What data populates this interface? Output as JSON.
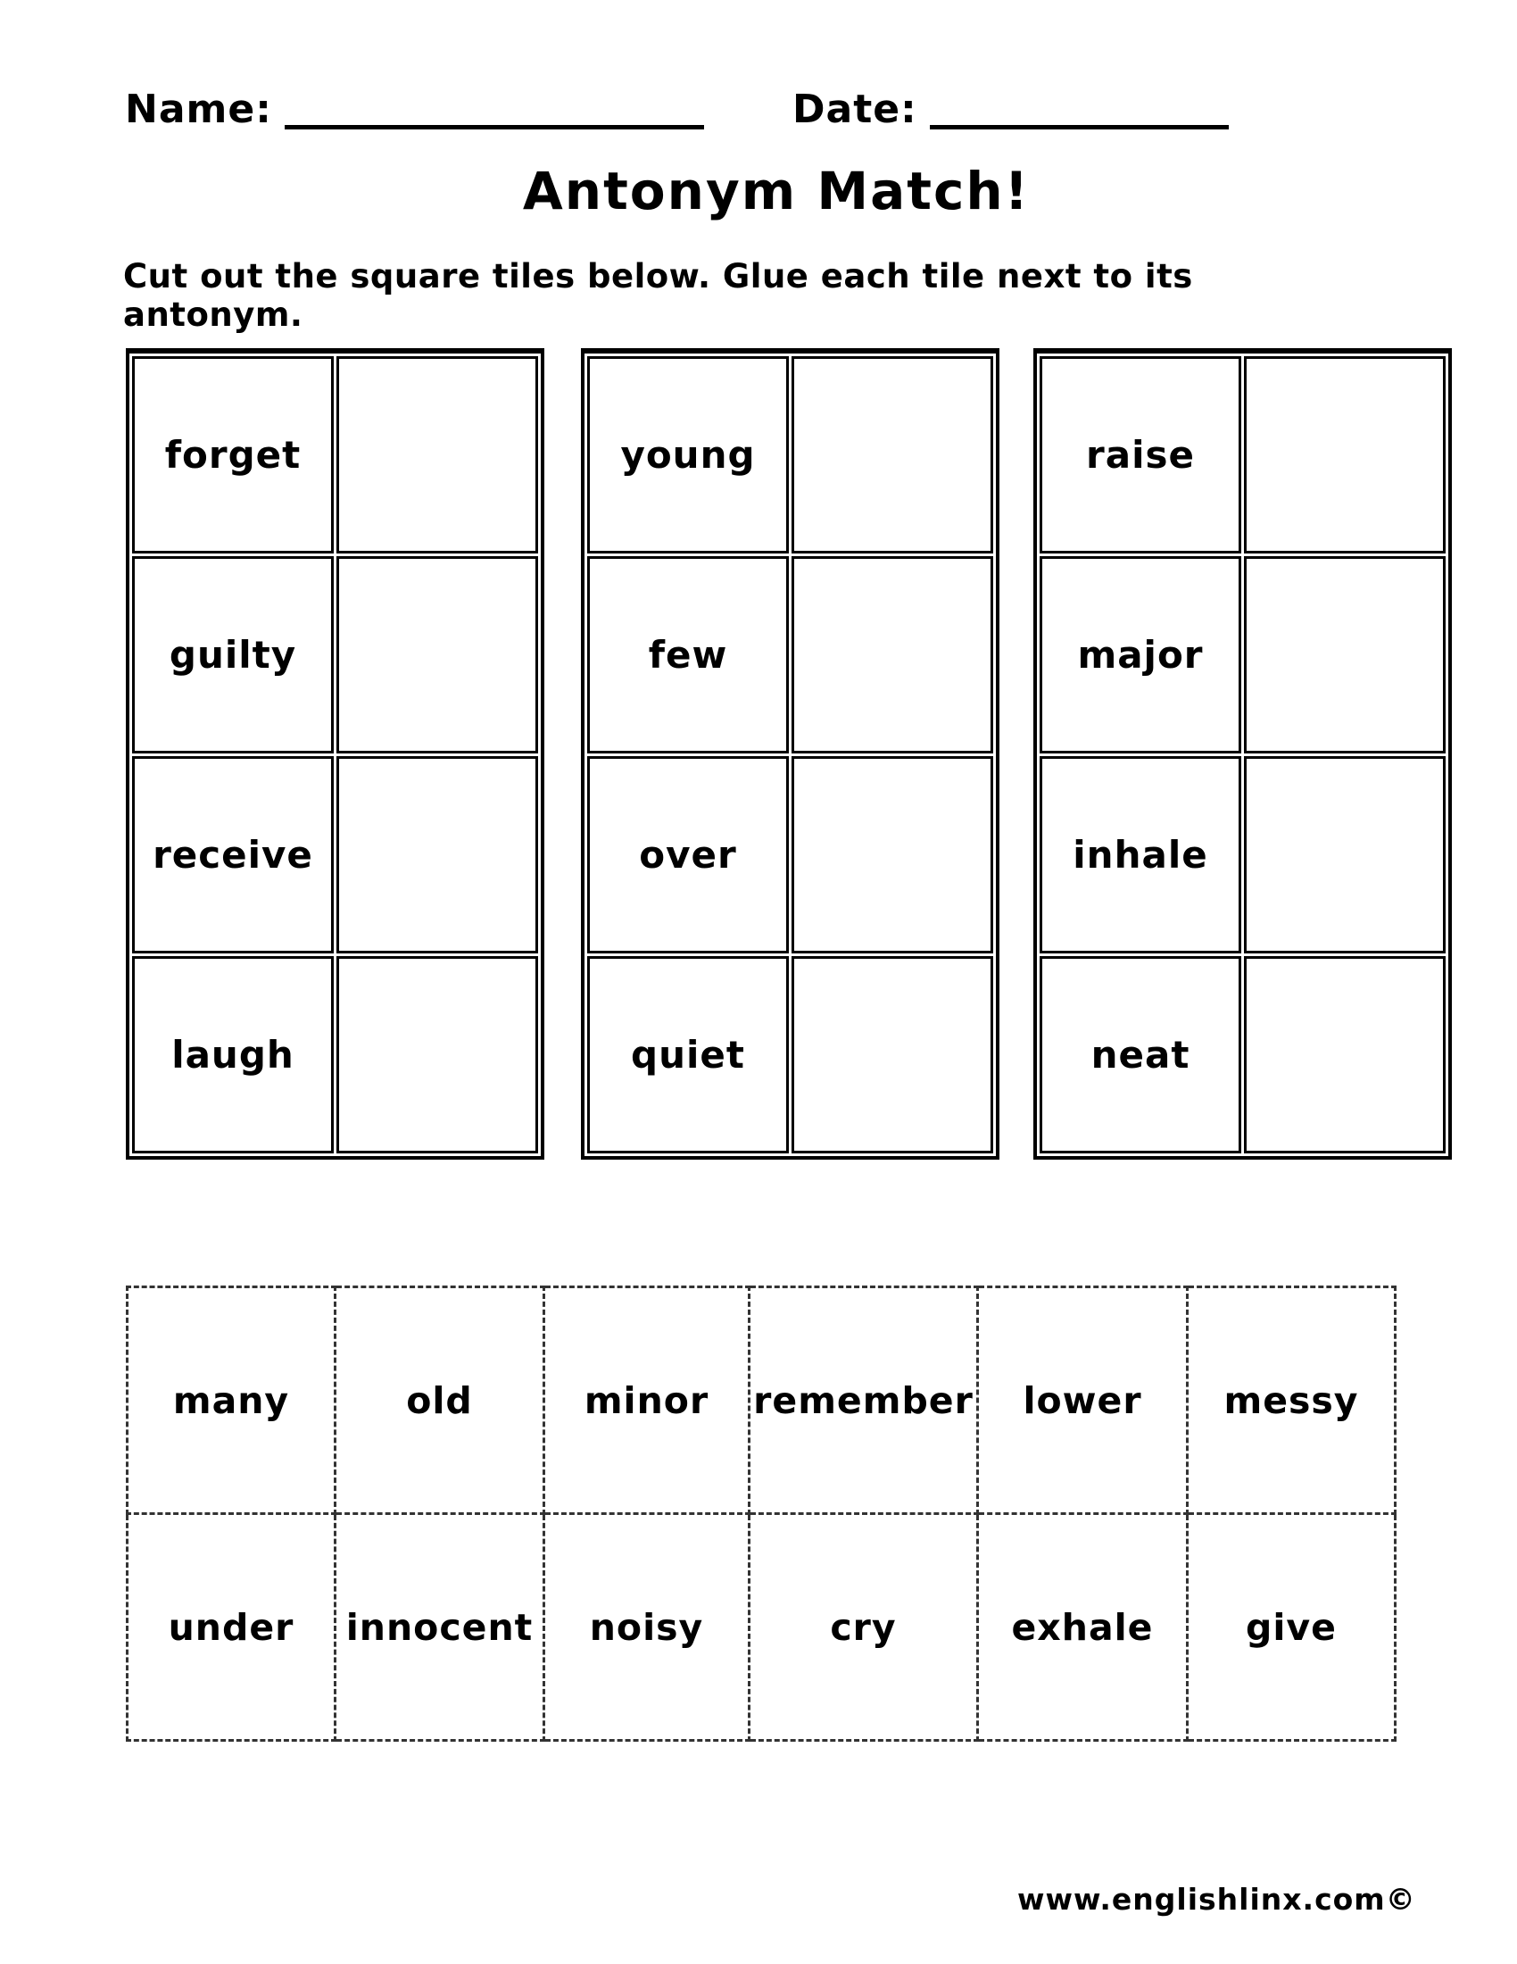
{
  "header": {
    "name_label": "Name:",
    "date_label": "Date:"
  },
  "title": "Antonym Match!",
  "instructions": "Cut out the square tiles below. Glue each tile next to its antonym.",
  "match_grids": [
    {
      "words": [
        "forget",
        "guilty",
        "receive",
        "laugh"
      ]
    },
    {
      "words": [
        "young",
        "few",
        "over",
        "quiet"
      ]
    },
    {
      "words": [
        "raise",
        "major",
        "inhale",
        "neat"
      ]
    }
  ],
  "tiles": [
    [
      "many",
      "old",
      "minor",
      "remember",
      "lower",
      "messy"
    ],
    [
      "under",
      "innocent",
      "noisy",
      "cry",
      "exhale",
      "give"
    ]
  ],
  "footer": {
    "site": "www.englishlinx.com©"
  },
  "colors": {
    "ink": "#000000",
    "paper": "#ffffff"
  }
}
